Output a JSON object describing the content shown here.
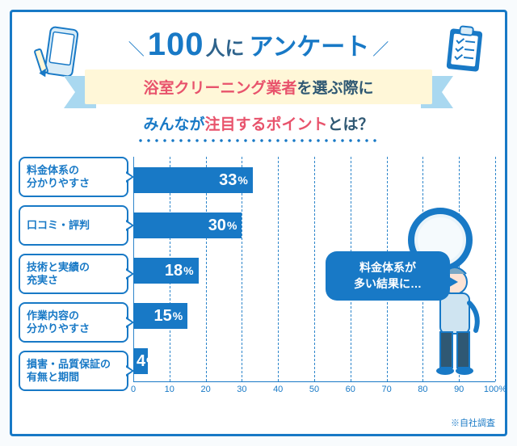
{
  "header": {
    "count": "100",
    "count_suffix": "人に",
    "count_word": "アンケート",
    "ribbon_em": "浴室クリーニング業者",
    "ribbon_rest": "を選ぶ際に",
    "subtitle_a": "みんなが",
    "subtitle_em": "注目するポイント",
    "subtitle_b": "とは？"
  },
  "chart": {
    "type": "bar",
    "bar_color": "#1879c6",
    "categories": [
      "料金体系の\n分かりやすさ",
      "口コミ・評判",
      "技術と実績の\n充実さ",
      "作業内容の\n分かりやすさ",
      "損害・品質保証の\n有無と期間"
    ],
    "values": [
      33,
      30,
      18,
      15,
      4
    ],
    "xmax": 100,
    "ticks": [
      0,
      10,
      20,
      30,
      40,
      50,
      60,
      70,
      80,
      90,
      100
    ],
    "tick_suffix_last": "%"
  },
  "character": {
    "speech_l1": "料金体系が",
    "speech_l2": "多い結果に…"
  },
  "footnote": "※自社調査"
}
